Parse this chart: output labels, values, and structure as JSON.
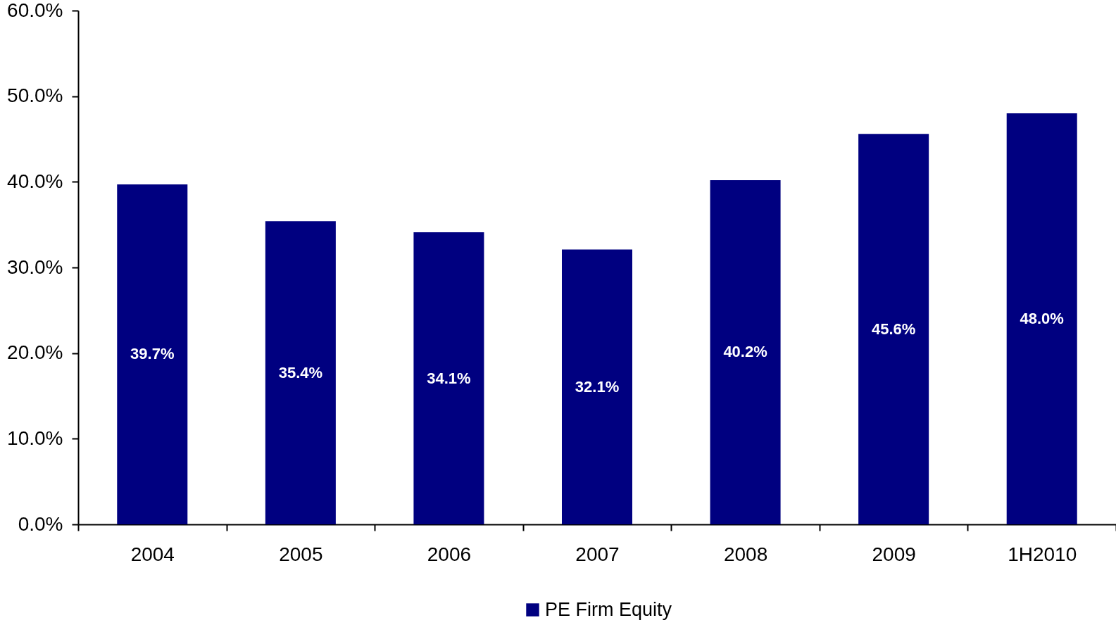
{
  "chart_data": {
    "type": "bar",
    "categories": [
      "2004",
      "2005",
      "2006",
      "2007",
      "2008",
      "2009",
      "1H2010"
    ],
    "series": [
      {
        "name": "PE Firm Equity",
        "color": "#000080",
        "values": [
          39.7,
          35.4,
          34.1,
          32.1,
          40.2,
          45.6,
          48.0
        ],
        "value_labels": [
          "39.7%",
          "35.4%",
          "34.1%",
          "32.1%",
          "40.2%",
          "45.6%",
          "48.0%"
        ]
      }
    ],
    "ylim": [
      0,
      60
    ],
    "yticks": [
      {
        "value": 0,
        "label": "0.0%"
      },
      {
        "value": 10,
        "label": "10.0%"
      },
      {
        "value": 20,
        "label": "20.0%"
      },
      {
        "value": 30,
        "label": "30.0%"
      },
      {
        "value": 40,
        "label": "40.0%"
      },
      {
        "value": 50,
        "label": "50.0%"
      },
      {
        "value": 60,
        "label": "60.0%"
      }
    ],
    "grid": false,
    "legend": "bottom"
  }
}
